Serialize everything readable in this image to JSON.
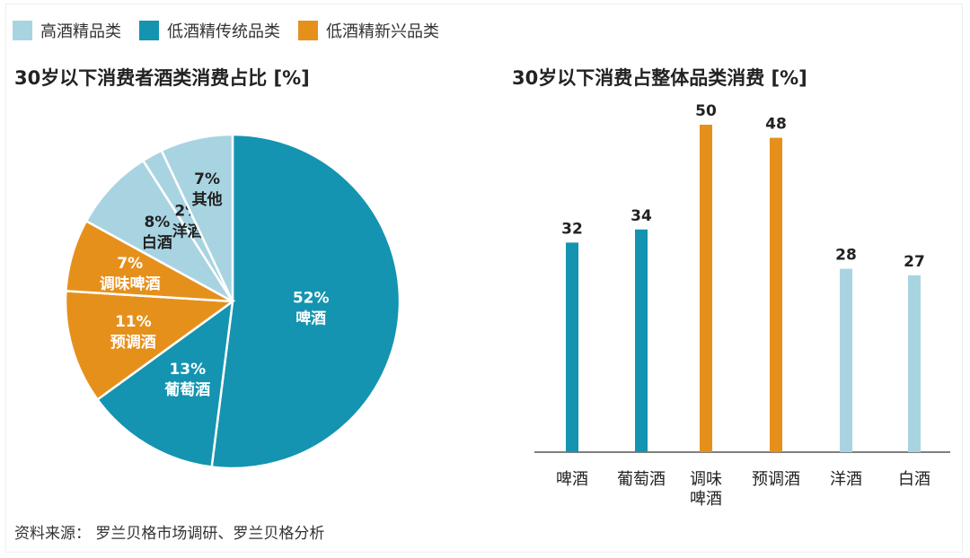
{
  "colors": {
    "premium": "#a8d4e2",
    "traditional": "#1494b0",
    "emerging": "#e6901c",
    "axis": "#555555",
    "label_light": "#ffffff",
    "label_dark": "#222222"
  },
  "legend": [
    {
      "label": "高酒精品类",
      "color_key": "premium"
    },
    {
      "label": "低酒精传统品类",
      "color_key": "traditional"
    },
    {
      "label": "低酒精新兴品类",
      "color_key": "emerging"
    }
  ],
  "chart_data": [
    {
      "type": "pie",
      "title": "30岁以下消费者酒类消费占比 [%]",
      "unit": "%",
      "slices": [
        {
          "label": "啤酒",
          "value": 52,
          "value_label": "52%",
          "group": "traditional"
        },
        {
          "label": "葡萄酒",
          "value": 13,
          "value_label": "13%",
          "group": "traditional"
        },
        {
          "label": "预调酒",
          "value": 11,
          "value_label": "11%",
          "group": "emerging"
        },
        {
          "label": "调味啤酒",
          "value": 7,
          "value_label": "7%",
          "group": "emerging"
        },
        {
          "label": "白酒",
          "value": 8,
          "value_label": "8%",
          "group": "premium"
        },
        {
          "label": "洋酒",
          "value": 2,
          "value_label": "2%",
          "group": "premium"
        },
        {
          "label": "其他",
          "value": 7,
          "value_label": "7%",
          "group": "premium"
        }
      ]
    },
    {
      "type": "bar",
      "title": "30岁以下消费占整体品类消费 [%]",
      "unit": "%",
      "ylim": [
        0,
        50
      ],
      "grid": false,
      "categories": [
        "啤酒",
        "葡萄酒",
        "调味啤酒",
        "预调酒",
        "洋酒",
        "白酒"
      ],
      "category_lines": [
        [
          "啤酒"
        ],
        [
          "葡萄酒"
        ],
        [
          "调味",
          "啤酒"
        ],
        [
          "预调酒"
        ],
        [
          "洋酒"
        ],
        [
          "白酒"
        ]
      ],
      "values": [
        32,
        34,
        50,
        48,
        28,
        27
      ],
      "groups": [
        "traditional",
        "traditional",
        "emerging",
        "emerging",
        "premium",
        "premium"
      ]
    }
  ],
  "source": "资料来源：  罗兰贝格市场调研、罗兰贝格分析"
}
